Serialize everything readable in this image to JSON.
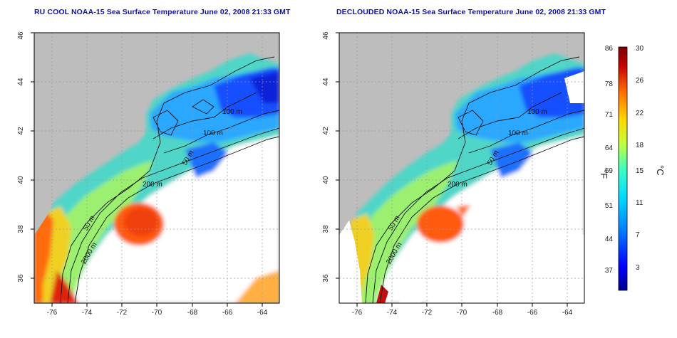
{
  "maps": [
    {
      "title": "RU COOL NOAA-15 Sea Surface Temperature June 02, 2008 21:33 GMT",
      "contour_labels": [
        "100 m",
        "100 m",
        "50 m",
        "200 m",
        "50 m",
        "2000 m"
      ]
    },
    {
      "title": "DECLOUDED NOAA-15 Sea Surface Temperature June 02, 2008 21:33 GMT",
      "contour_labels": [
        "100 m",
        "100 m",
        "50 m",
        "200 m",
        "50 m",
        "2000 m"
      ]
    }
  ],
  "axes": {
    "x_ticks": [
      "-76",
      "-74",
      "-72",
      "-70",
      "-68",
      "-66",
      "-64"
    ],
    "y_ticks": [
      "36",
      "38",
      "40",
      "42",
      "44",
      "46"
    ],
    "x_range": [
      -77,
      -63
    ],
    "y_range": [
      35,
      46
    ]
  },
  "colorbar": {
    "fahrenheit_ticks": [
      "86",
      "78",
      "71",
      "64",
      "59",
      "51",
      "44",
      "37"
    ],
    "celsius_ticks": [
      "30",
      "26",
      "22",
      "18",
      "15",
      "11",
      "7",
      "3"
    ],
    "fahrenheit_unit": "°F",
    "celsius_unit": "°C",
    "range_c": [
      -1,
      30
    ],
    "colors": [
      "#00008c",
      "#0000ff",
      "#0080ff",
      "#00d8ff",
      "#40ffc0",
      "#c0ff40",
      "#ffd800",
      "#ff6a00",
      "#c80000",
      "#7a0000"
    ]
  },
  "colors": {
    "land": "#bdbdbd",
    "cloud": "#ffffff",
    "title": "#1010b0"
  }
}
